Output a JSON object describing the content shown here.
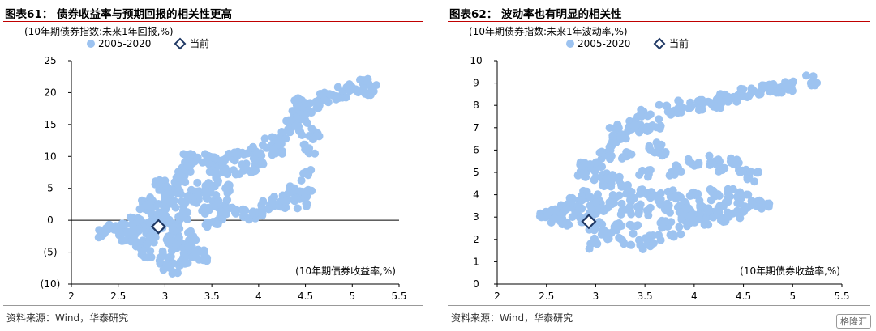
{
  "watermark": "格隆汇",
  "chart_data": [
    {
      "type": "scatter",
      "title": "图表61： 债券收益率与预期回报的相关性更高",
      "ylabel": "(10年期债券指数:未来1年回报,%)",
      "xlabel": "(10年期债券收益率,%)",
      "xlim": [
        2,
        5.5
      ],
      "ylim": [
        -10,
        25
      ],
      "x_ticks": [
        2,
        2.5,
        3,
        3.5,
        4,
        4.5,
        5,
        5.5
      ],
      "x_tick_labels": [
        "2",
        "2.5",
        "3",
        "3.5",
        "4",
        "4.5",
        "5",
        "5.5"
      ],
      "y_ticks": [
        -10,
        -5,
        0,
        5,
        10,
        15,
        20,
        25
      ],
      "y_tick_labels": [
        "(10)",
        "(5)",
        "0",
        "5",
        "10",
        "15",
        "20",
        "25"
      ],
      "legend_position": "top",
      "series": [
        {
          "name": "2005-2020",
          "color": "#9dc3f0",
          "marker": "circle",
          "points": [
            [
              2.35,
              -2.0
            ],
            [
              2.45,
              -1.5
            ],
            [
              2.55,
              -1.0
            ],
            [
              2.6,
              -2.5
            ],
            [
              2.7,
              -3.5
            ],
            [
              2.75,
              -1.2
            ],
            [
              2.7,
              0.2
            ],
            [
              2.8,
              -0.5
            ],
            [
              2.85,
              1.5
            ],
            [
              2.8,
              2.2
            ],
            [
              2.9,
              2.8
            ],
            [
              2.95,
              1.0
            ],
            [
              3.0,
              3.5
            ],
            [
              3.0,
              4.5
            ],
            [
              3.05,
              2.0
            ],
            [
              3.0,
              -0.5
            ],
            [
              2.9,
              -2.0
            ],
            [
              2.85,
              -3.5
            ],
            [
              2.8,
              -5.0
            ],
            [
              3.0,
              -5.5
            ],
            [
              3.0,
              -7.0
            ],
            [
              3.1,
              -7.5
            ],
            [
              3.2,
              -6.5
            ],
            [
              3.3,
              -5.5
            ],
            [
              3.4,
              -5.5
            ],
            [
              3.1,
              -4.0
            ],
            [
              3.2,
              -3.0
            ],
            [
              3.1,
              -1.0
            ],
            [
              3.2,
              0.5
            ],
            [
              3.1,
              5.0
            ],
            [
              3.15,
              6.5
            ],
            [
              3.2,
              7.5
            ],
            [
              3.25,
              9.5
            ],
            [
              3.3,
              8.5
            ],
            [
              3.4,
              9.5
            ],
            [
              3.5,
              9.5
            ],
            [
              3.6,
              9.0
            ],
            [
              3.7,
              9.8
            ],
            [
              3.8,
              10.0
            ],
            [
              3.9,
              10.5
            ],
            [
              4.0,
              10.8
            ],
            [
              4.1,
              12.0
            ],
            [
              4.2,
              12.5
            ],
            [
              4.3,
              13.5
            ],
            [
              4.35,
              15.0
            ],
            [
              4.4,
              16.5
            ],
            [
              4.5,
              17.5
            ],
            [
              4.45,
              18.5
            ],
            [
              4.6,
              18.0
            ],
            [
              4.8,
              19.0
            ],
            [
              4.9,
              20.0
            ],
            [
              5.0,
              20.5
            ],
            [
              5.15,
              21.5
            ],
            [
              5.2,
              20.5
            ],
            [
              4.7,
              19.5
            ],
            [
              4.5,
              16.0
            ],
            [
              4.4,
              14.0
            ],
            [
              4.2,
              11.0
            ],
            [
              4.0,
              9.5
            ],
            [
              3.8,
              8.0
            ],
            [
              3.6,
              7.0
            ],
            [
              3.5,
              6.0
            ],
            [
              3.4,
              5.0
            ],
            [
              3.3,
              4.0
            ],
            [
              3.5,
              3.5
            ],
            [
              3.6,
              2.5
            ],
            [
              3.7,
              1.5
            ],
            [
              3.8,
              1.0
            ],
            [
              3.6,
              0.5
            ],
            [
              3.5,
              -1.0
            ],
            [
              3.3,
              -2.5
            ],
            [
              3.4,
              1.5
            ],
            [
              3.3,
              3.0
            ],
            [
              3.2,
              2.0
            ],
            [
              3.9,
              0.5
            ],
            [
              4.0,
              1.5
            ],
            [
              4.1,
              2.5
            ],
            [
              4.2,
              3.0
            ],
            [
              4.3,
              3.5
            ],
            [
              4.4,
              4.5
            ],
            [
              4.5,
              4.0
            ],
            [
              4.45,
              3.0
            ],
            [
              4.35,
              2.5
            ],
            [
              4.5,
              7.0
            ],
            [
              4.6,
              13.5
            ],
            [
              4.55,
              11.0
            ],
            [
              3.9,
              7.5
            ],
            [
              3.7,
              5.0
            ],
            [
              3.5,
              7.5
            ],
            [
              3.0,
              6.0
            ],
            [
              2.95,
              5.5
            ],
            [
              3.05,
              -3.0
            ],
            [
              3.25,
              -4.5
            ],
            [
              2.65,
              -1.8
            ],
            [
              3.15,
              3.8
            ]
          ]
        },
        {
          "name": "当前",
          "color": "#1f3864",
          "marker": "diamond",
          "points": [
            [
              2.93,
              -1.0
            ]
          ]
        }
      ]
    },
    {
      "type": "scatter",
      "title": "图表62： 波动率也有明显的相关性",
      "ylabel": "(10年期债券指数:未来1年波动率,%)",
      "xlabel": "(10年期债券收益率,%)",
      "xlim": [
        2,
        5.5
      ],
      "ylim": [
        0,
        10
      ],
      "x_ticks": [
        2,
        2.5,
        3,
        3.5,
        4,
        4.5,
        5,
        5.5
      ],
      "x_tick_labels": [
        "2",
        "2.5",
        "3",
        "3.5",
        "4",
        "4.5",
        "5",
        "5.5"
      ],
      "y_ticks": [
        0,
        1,
        2,
        3,
        4,
        5,
        6,
        7,
        8,
        9,
        10
      ],
      "y_tick_labels": [
        "0",
        "1",
        "2",
        "3",
        "4",
        "5",
        "6",
        "7",
        "8",
        "9",
        "10"
      ],
      "legend_position": "top",
      "series": [
        {
          "name": "2005-2020",
          "color": "#9dc3f0",
          "marker": "circle",
          "points": [
            [
              2.5,
              3.0
            ],
            [
              2.6,
              3.1
            ],
            [
              2.7,
              2.8
            ],
            [
              2.8,
              3.2
            ],
            [
              2.9,
              3.0
            ],
            [
              3.0,
              3.3
            ],
            [
              3.0,
              2.6
            ],
            [
              3.1,
              2.2
            ],
            [
              3.2,
              2.5
            ],
            [
              3.3,
              2.0
            ],
            [
              3.4,
              2.4
            ],
            [
              3.5,
              1.8
            ],
            [
              3.6,
              2.0
            ],
            [
              3.7,
              2.6
            ],
            [
              3.8,
              2.3
            ],
            [
              3.9,
              2.8
            ],
            [
              4.0,
              3.0
            ],
            [
              4.1,
              2.9
            ],
            [
              4.2,
              3.2
            ],
            [
              4.3,
              3.0
            ],
            [
              4.4,
              3.1
            ],
            [
              4.5,
              3.3
            ],
            [
              4.6,
              3.5
            ],
            [
              4.7,
              3.6
            ],
            [
              4.5,
              3.8
            ],
            [
              4.3,
              3.7
            ],
            [
              4.1,
              3.6
            ],
            [
              3.9,
              3.5
            ],
            [
              3.7,
              3.4
            ],
            [
              3.5,
              3.3
            ],
            [
              3.3,
              3.2
            ],
            [
              3.1,
              3.5
            ],
            [
              3.2,
              3.8
            ],
            [
              3.4,
              3.7
            ],
            [
              3.6,
              3.9
            ],
            [
              3.8,
              4.0
            ],
            [
              4.0,
              3.9
            ],
            [
              4.2,
              4.0
            ],
            [
              4.4,
              4.0
            ],
            [
              3.0,
              3.8
            ],
            [
              2.9,
              4.0
            ],
            [
              2.8,
              3.6
            ],
            [
              3.1,
              4.5
            ],
            [
              3.3,
              4.2
            ],
            [
              3.5,
              4.1
            ],
            [
              2.85,
              5.0
            ],
            [
              2.95,
              5.2
            ],
            [
              3.05,
              4.8
            ],
            [
              2.9,
              5.3
            ],
            [
              3.0,
              5.4
            ],
            [
              3.5,
              5.0
            ],
            [
              3.8,
              5.1
            ],
            [
              4.0,
              5.4
            ],
            [
              4.2,
              5.5
            ],
            [
              4.4,
              5.4
            ],
            [
              4.5,
              5.0
            ],
            [
              4.6,
              4.8
            ],
            [
              4.3,
              5.2
            ],
            [
              3.1,
              6.0
            ],
            [
              3.2,
              6.4
            ],
            [
              3.3,
              6.6
            ],
            [
              3.4,
              6.8
            ],
            [
              3.2,
              6.9
            ],
            [
              3.1,
              5.8
            ],
            [
              3.3,
              5.7
            ],
            [
              3.5,
              7.0
            ],
            [
              3.6,
              7.2
            ],
            [
              3.4,
              7.3
            ],
            [
              3.5,
              7.6
            ],
            [
              3.8,
              7.7
            ],
            [
              4.0,
              7.9
            ],
            [
              4.1,
              8.0
            ],
            [
              4.2,
              8.1
            ],
            [
              4.4,
              8.4
            ],
            [
              4.6,
              8.6
            ],
            [
              4.8,
              8.8
            ],
            [
              5.0,
              8.9
            ],
            [
              5.2,
              9.1
            ],
            [
              4.9,
              8.8
            ],
            [
              4.7,
              8.7
            ],
            [
              4.5,
              8.5
            ],
            [
              4.3,
              8.3
            ],
            [
              3.9,
              8.0
            ],
            [
              3.7,
              7.8
            ],
            [
              3.6,
              6.1
            ],
            [
              3.7,
              6.0
            ],
            [
              3.2,
              4.8
            ],
            [
              3.0,
              1.8
            ],
            [
              2.7,
              3.4
            ],
            [
              2.55,
              3.1
            ],
            [
              4.1,
              3.3
            ],
            [
              3.9,
              3.2
            ]
          ]
        },
        {
          "name": "当前",
          "color": "#1f3864",
          "marker": "diamond",
          "points": [
            [
              2.93,
              2.8
            ]
          ]
        }
      ]
    }
  ],
  "sources": [
    "资料来源：Wind，华泰研究",
    "资料来源：Wind，华泰研究"
  ]
}
